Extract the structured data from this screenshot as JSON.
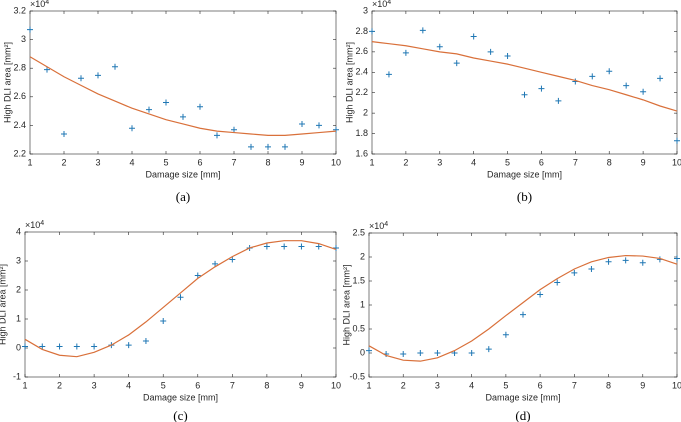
{
  "chart_data": [
    {
      "type": "scatter",
      "caption": "(a)",
      "x_label": "Damage size [mm]",
      "y_label": "High DLI area [mm²]",
      "y_multiplier": {
        "base": "×10",
        "exponent": "4"
      },
      "x": [
        1,
        1.5,
        2,
        2.5,
        3,
        3.5,
        4,
        4.5,
        5,
        5.5,
        6,
        6.5,
        7,
        7.5,
        8,
        8.5,
        9,
        9.5,
        10
      ],
      "series": [
        {
          "type": "scatter",
          "marker": "+",
          "color": "#1f77b4",
          "values": [
            3.07,
            2.79,
            2.34,
            2.73,
            2.75,
            2.81,
            2.38,
            2.51,
            2.56,
            2.46,
            2.53,
            2.33,
            2.37,
            2.25,
            2.25,
            2.25,
            2.41,
            2.4,
            2.37
          ]
        },
        {
          "type": "line",
          "color": "#d9703a",
          "values": [
            2.88,
            2.81,
            2.74,
            2.68,
            2.62,
            2.57,
            2.52,
            2.48,
            2.44,
            2.41,
            2.38,
            2.36,
            2.35,
            2.34,
            2.33,
            2.33,
            2.34,
            2.35,
            2.36
          ]
        }
      ],
      "xlim": [
        1,
        10
      ],
      "xticks": [
        1,
        2,
        3,
        4,
        5,
        6,
        7,
        8,
        9,
        10
      ],
      "ylim": [
        2.2,
        3.2
      ],
      "yticks": [
        2.2,
        2.4,
        2.6,
        2.8,
        3,
        3.2
      ],
      "grid": false
    },
    {
      "type": "scatter",
      "caption": "(b)",
      "x_label": "Damage size [mm]",
      "y_label": "High DLI area [mm²]",
      "y_multiplier": {
        "base": "×10",
        "exponent": "4"
      },
      "x": [
        1,
        1.5,
        2,
        2.5,
        3,
        3.5,
        4,
        4.5,
        5,
        5.5,
        6,
        6.5,
        7,
        7.5,
        8,
        8.5,
        9,
        9.5,
        10
      ],
      "series": [
        {
          "type": "scatter",
          "marker": "+",
          "color": "#1f77b4",
          "values": [
            2.8,
            2.38,
            2.59,
            2.81,
            2.65,
            2.49,
            2.75,
            2.6,
            2.56,
            2.18,
            2.24,
            2.12,
            2.31,
            2.36,
            2.41,
            2.27,
            2.21,
            2.34,
            1.73
          ]
        },
        {
          "type": "line",
          "color": "#d9703a",
          "values": [
            2.7,
            2.68,
            2.66,
            2.63,
            2.6,
            2.58,
            2.54,
            2.51,
            2.48,
            2.44,
            2.4,
            2.36,
            2.32,
            2.27,
            2.23,
            2.18,
            2.13,
            2.07,
            2.02
          ]
        }
      ],
      "xlim": [
        1,
        10
      ],
      "xticks": [
        1,
        2,
        3,
        4,
        5,
        6,
        7,
        8,
        9,
        10
      ],
      "ylim": [
        1.6,
        3
      ],
      "yticks": [
        1.6,
        1.8,
        2,
        2.2,
        2.4,
        2.6,
        2.8,
        3
      ],
      "grid": false
    },
    {
      "type": "scatter",
      "caption": "(c)",
      "x_label": "Damage size [mm]",
      "y_label": "High DLI area [mm²]",
      "y_multiplier": {
        "base": "×10",
        "exponent": "4"
      },
      "x": [
        1,
        1.5,
        2,
        2.5,
        3,
        3.5,
        4,
        4.5,
        5,
        5.5,
        6,
        6.5,
        7,
        7.5,
        8,
        8.5,
        9,
        9.5,
        10
      ],
      "series": [
        {
          "type": "scatter",
          "marker": "+",
          "color": "#1f77b4",
          "values": [
            0.05,
            0.05,
            0.05,
            0.05,
            0.05,
            0.1,
            0.1,
            0.24,
            0.93,
            1.75,
            2.5,
            2.9,
            3.05,
            3.45,
            3.5,
            3.5,
            3.5,
            3.5,
            3.45
          ]
        },
        {
          "type": "line",
          "color": "#d9703a",
          "values": [
            0.3,
            -0.05,
            -0.25,
            -0.3,
            -0.15,
            0.1,
            0.45,
            0.9,
            1.4,
            1.9,
            2.4,
            2.8,
            3.15,
            3.45,
            3.62,
            3.7,
            3.7,
            3.6,
            3.4
          ]
        }
      ],
      "xlim": [
        1,
        10
      ],
      "xticks": [
        1,
        2,
        3,
        4,
        5,
        6,
        7,
        8,
        9,
        10
      ],
      "ylim": [
        -1,
        4
      ],
      "yticks": [
        -1,
        0,
        1,
        2,
        3,
        4
      ],
      "grid": false
    },
    {
      "type": "scatter",
      "caption": "(d)",
      "x_label": "Damage size [mm]",
      "y_label": "High DLI area [mm²]",
      "y_multiplier": {
        "base": "×10",
        "exponent": "4"
      },
      "x": [
        1,
        1.5,
        2,
        2.5,
        3,
        3.5,
        4,
        4.5,
        5,
        5.5,
        6,
        6.5,
        7,
        7.5,
        8,
        8.5,
        9,
        9.5,
        10
      ],
      "series": [
        {
          "type": "scatter",
          "marker": "+",
          "color": "#1f77b4",
          "values": [
            0.05,
            -0.02,
            -0.02,
            0,
            0,
            0,
            0,
            0.08,
            0.38,
            0.8,
            1.22,
            1.47,
            1.67,
            1.75,
            1.9,
            1.93,
            1.88,
            1.95,
            1.97
          ]
        },
        {
          "type": "line",
          "color": "#d9703a",
          "values": [
            0.15,
            -0.05,
            -0.15,
            -0.17,
            -0.1,
            0.05,
            0.25,
            0.5,
            0.78,
            1.05,
            1.32,
            1.55,
            1.75,
            1.9,
            1.99,
            2.03,
            2.02,
            1.97,
            1.85
          ]
        }
      ],
      "xlim": [
        1,
        10
      ],
      "xticks": [
        1,
        2,
        3,
        4,
        5,
        6,
        7,
        8,
        9,
        10
      ],
      "ylim": [
        -0.5,
        2.5
      ],
      "yticks": [
        -0.5,
        0,
        0.5,
        1,
        1.5,
        2,
        2.5
      ],
      "grid": false
    }
  ]
}
